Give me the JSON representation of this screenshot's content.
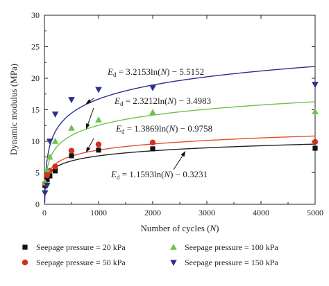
{
  "chart_data": {
    "type": "scatter",
    "title": "",
    "xlabel": "Number of cycles (N)",
    "ylabel": "Dynamic modulus (MPa)",
    "xlim": [
      0,
      5000
    ],
    "ylim": [
      0,
      30
    ],
    "x_ticks": [
      0,
      1000,
      2000,
      3000,
      4000,
      5000
    ],
    "y_ticks": [
      0,
      5,
      10,
      15,
      20,
      25,
      30
    ],
    "grid": false,
    "legend_position": "bottom",
    "series": [
      {
        "name": "Seepage pressure = 20 kPa",
        "marker": "square",
        "color": "#111111",
        "line_color": "#222222",
        "points": [
          [
            10,
            3.0
          ],
          [
            50,
            3.9
          ],
          [
            100,
            4.5
          ],
          [
            200,
            5.3
          ],
          [
            500,
            7.7
          ],
          [
            1000,
            8.6
          ],
          [
            2000,
            8.8
          ],
          [
            5000,
            8.9
          ]
        ],
        "fit": {
          "a": 1.1593,
          "b": -0.3231
        },
        "equation": [
          "E",
          "d",
          " = 1.1593ln(",
          "N",
          ") − 0.3231"
        ]
      },
      {
        "name": "Seepage pressure = 50 kPa",
        "marker": "circle",
        "color": "#d32f1e",
        "line_color": "#e0502a",
        "points": [
          [
            10,
            3.3
          ],
          [
            50,
            4.6
          ],
          [
            100,
            5.3
          ],
          [
            200,
            6.0
          ],
          [
            500,
            8.5
          ],
          [
            1000,
            9.5
          ],
          [
            2000,
            9.8
          ],
          [
            5000,
            9.9
          ]
        ],
        "fit": {
          "a": 1.3869,
          "b": -0.9758
        },
        "equation": [
          "E",
          "d",
          " = 1.3869ln(",
          "N",
          ") − 0.9758"
        ]
      },
      {
        "name": "Seepage pressure = 100 kPa",
        "marker": "triangle-up",
        "color": "#6cc24a",
        "line_color": "#6cc24a",
        "points": [
          [
            10,
            3.5
          ],
          [
            50,
            5.5
          ],
          [
            100,
            7.5
          ],
          [
            200,
            10.0
          ],
          [
            500,
            12.1
          ],
          [
            1000,
            13.4
          ],
          [
            2000,
            14.6
          ],
          [
            5000,
            14.7
          ]
        ],
        "fit": {
          "a": 2.3212,
          "b": -3.4983
        },
        "equation": [
          "E",
          "d",
          " = 2.3212ln(",
          "N",
          ") − 3.4983"
        ]
      },
      {
        "name": "Seepage pressure = 150 kPa",
        "marker": "triangle-down",
        "color": "#2b2f8f",
        "line_color": "#2b2f8f",
        "points": [
          [
            10,
            1.8
          ],
          [
            50,
            3.0
          ],
          [
            100,
            10.0
          ],
          [
            200,
            14.3
          ],
          [
            500,
            16.6
          ],
          [
            1000,
            18.2
          ],
          [
            2000,
            18.5
          ],
          [
            5000,
            19.0
          ]
        ],
        "fit": {
          "a": 3.2153,
          "b": -5.5152
        },
        "equation": [
          "E",
          "d",
          " = 3.2153ln(",
          "N",
          ") − 5.5152"
        ]
      }
    ],
    "legend": [
      {
        "label": "Seepage pressure = 20 kPa"
      },
      {
        "label": "Seepage pressure = 50 kPa"
      },
      {
        "label": "Seepage pressure = 100 kPa"
      },
      {
        "label": "Seepage pressure = 150 kPa"
      }
    ],
    "annotations": [
      {
        "series": 3,
        "arrow_to_x": 800
      },
      {
        "series": 2,
        "arrow_to_x": 800
      },
      {
        "series": 1,
        "arrow_to_x": 800
      },
      {
        "series": 0,
        "arrow_to_x": 2600
      }
    ]
  }
}
